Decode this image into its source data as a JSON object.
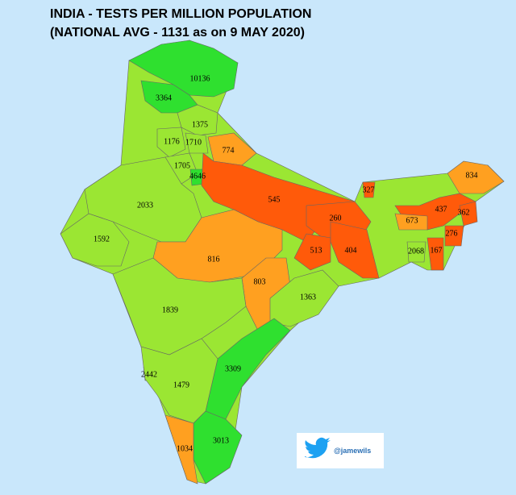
{
  "title": "INDIA - TESTS PER MILLION POPULATION",
  "subtitle": "(NATIONAL AVG - 1131 as on 9 MAY 2020)",
  "handle": "@jamewils",
  "regions": [
    {
      "value": 10136,
      "color": "#2fe02f"
    },
    {
      "value": 3364,
      "color": "#2fe02f"
    },
    {
      "value": 1375,
      "color": "#9be633"
    },
    {
      "value": 1176,
      "color": "#9be633"
    },
    {
      "value": 1710,
      "color": "#9be633"
    },
    {
      "value": 774,
      "color": "#ffa020"
    },
    {
      "value": 1705,
      "color": "#9be633"
    },
    {
      "value": 4646,
      "color": "#2fe02f"
    },
    {
      "value": 2033,
      "color": "#9be633"
    },
    {
      "value": 545,
      "color": "#ff5a0a"
    },
    {
      "value": 327,
      "color": "#ff5a0a"
    },
    {
      "value": 834,
      "color": "#ffa020"
    },
    {
      "value": 437,
      "color": "#ff5a0a"
    },
    {
      "value": 362,
      "color": "#ff5a0a"
    },
    {
      "value": 673,
      "color": "#ffa020"
    },
    {
      "value": 276,
      "color": "#ff5a0a"
    },
    {
      "value": 260,
      "color": "#ff5a0a"
    },
    {
      "value": 2068,
      "color": "#9be633"
    },
    {
      "value": 167,
      "color": "#ff5a0a"
    },
    {
      "value": 1592,
      "color": "#9be633"
    },
    {
      "value": 816,
      "color": "#ffa020"
    },
    {
      "value": 513,
      "color": "#ff5a0a"
    },
    {
      "value": 404,
      "color": "#ff5a0a"
    },
    {
      "value": 803,
      "color": "#ffa020"
    },
    {
      "value": 1363,
      "color": "#9be633"
    },
    {
      "value": 1839,
      "color": "#9be633"
    },
    {
      "value": 3309,
      "color": "#2fe02f"
    },
    {
      "value": 2442,
      "color": "#9be633"
    },
    {
      "value": 1479,
      "color": "#9be633"
    },
    {
      "value": 3013,
      "color": "#2fe02f"
    },
    {
      "value": 1034,
      "color": "#ffa020"
    }
  ]
}
